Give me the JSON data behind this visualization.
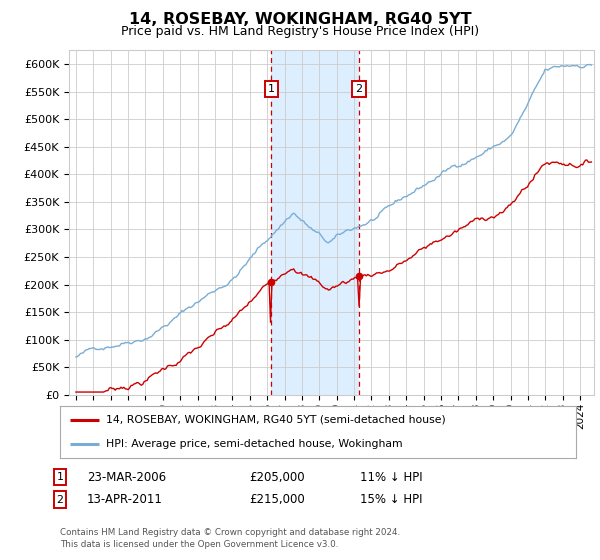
{
  "title": "14, ROSEBAY, WOKINGHAM, RG40 5YT",
  "subtitle": "Price paid vs. HM Land Registry's House Price Index (HPI)",
  "ylabel_ticks": [
    "£0",
    "£50K",
    "£100K",
    "£150K",
    "£200K",
    "£250K",
    "£300K",
    "£350K",
    "£400K",
    "£450K",
    "£500K",
    "£550K",
    "£600K"
  ],
  "ytick_values": [
    0,
    50000,
    100000,
    150000,
    200000,
    250000,
    300000,
    350000,
    400000,
    450000,
    500000,
    550000,
    600000
  ],
  "ylim": [
    0,
    625000
  ],
  "sale1_t": 2006.23,
  "sale2_t": 2011.29,
  "sale1_price": 205000,
  "sale2_price": 215000,
  "sale1_date": "23-MAR-2006",
  "sale2_date": "13-APR-2011",
  "sale1_hpi": "11% ↓ HPI",
  "sale2_hpi": "15% ↓ HPI",
  "legend_red": "14, ROSEBAY, WOKINGHAM, RG40 5YT (semi-detached house)",
  "legend_blue": "HPI: Average price, semi-detached house, Wokingham",
  "footer": "Contains HM Land Registry data © Crown copyright and database right 2024.\nThis data is licensed under the Open Government Licence v3.0.",
  "red_color": "#cc0000",
  "blue_color": "#7aadd4",
  "shade_color": "#ddeeff",
  "grid_color": "#cccccc",
  "background_color": "#ffffff",
  "xlim_left": 1994.6,
  "xlim_right": 2024.8
}
